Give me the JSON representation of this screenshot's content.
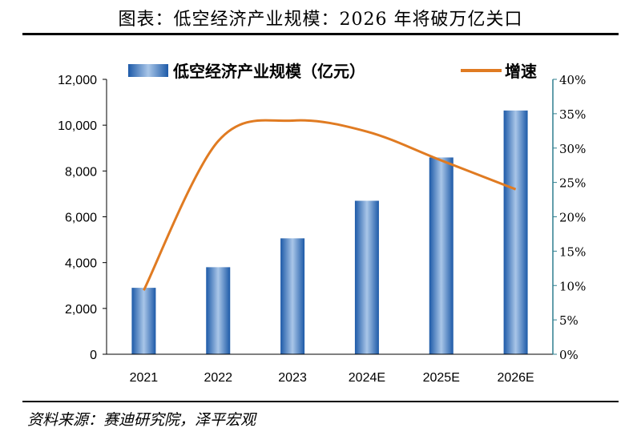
{
  "title": "图表：低空经济产业规模：2026 年将破万亿关口",
  "source": "资料来源：赛迪研究院，泽平宏观",
  "colors": {
    "bar": "#2e6db5",
    "line": "#e07b22",
    "right_axis": "#2f7f8f"
  },
  "chart_data": {
    "type": "bar",
    "categories": [
      "2021",
      "2022",
      "2023",
      "2024E",
      "2025E",
      "2026E"
    ],
    "series": [
      {
        "name": "低空经济产业规模（亿元）",
        "type": "bar",
        "axis": "left",
        "values": [
          2900,
          3800,
          5060,
          6700,
          8590,
          10640
        ]
      },
      {
        "name": "增速",
        "type": "line",
        "axis": "right",
        "values": [
          9.3,
          31.0,
          34.0,
          32.4,
          28.2,
          24.0
        ]
      }
    ],
    "y_left": {
      "min": 0,
      "max": 12000,
      "ticks": [
        0,
        2000,
        4000,
        6000,
        8000,
        10000,
        12000
      ],
      "tick_labels": [
        "0",
        "2,000",
        "4,000",
        "6,000",
        "8,000",
        "10,000",
        "12,000"
      ]
    },
    "y_right": {
      "min": 0,
      "max": 40,
      "ticks": [
        0,
        5,
        10,
        15,
        20,
        25,
        30,
        35,
        40
      ],
      "tick_labels": [
        "0%",
        "5%",
        "10%",
        "15%",
        "20%",
        "25%",
        "30%",
        "35%",
        "40%"
      ]
    },
    "legend_position": "top",
    "grid": false
  }
}
